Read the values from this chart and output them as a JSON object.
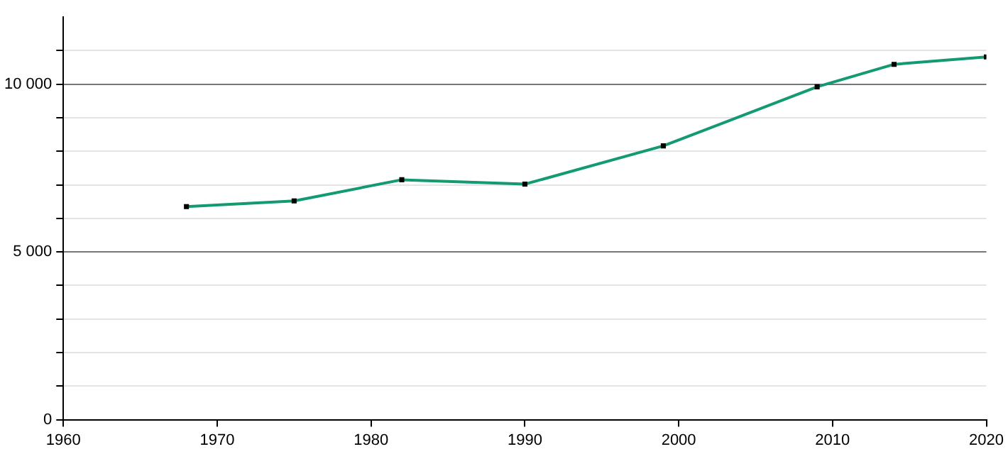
{
  "chart_data": {
    "type": "line",
    "x": [
      1968,
      1975,
      1982,
      1990,
      1999,
      2009,
      2014,
      2020
    ],
    "series": [
      {
        "color": "#129a72",
        "values": [
          6350,
          6520,
          7150,
          7020,
          8160,
          9920,
          10590,
          10810
        ]
      }
    ],
    "xlim": [
      1960,
      2020
    ],
    "xticks": [
      1960,
      1970,
      1980,
      1990,
      2000,
      2010,
      2020
    ],
    "ylim": [
      0,
      12000
    ],
    "yticks": [
      {
        "value": 0,
        "label": "0"
      },
      {
        "value": 1000,
        "label": null
      },
      {
        "value": 2000,
        "label": null
      },
      {
        "value": 3000,
        "label": null
      },
      {
        "value": 4000,
        "label": null
      },
      {
        "value": 5000,
        "label": "5 000"
      },
      {
        "value": 6000,
        "label": null
      },
      {
        "value": 7000,
        "label": null
      },
      {
        "value": 8000,
        "label": null
      },
      {
        "value": 9000,
        "label": null
      },
      {
        "value": 10000,
        "label": "10 000"
      },
      {
        "value": 11000,
        "label": null
      }
    ],
    "grid": "y",
    "marker": "square",
    "line_style": "solid",
    "legend": false
  }
}
